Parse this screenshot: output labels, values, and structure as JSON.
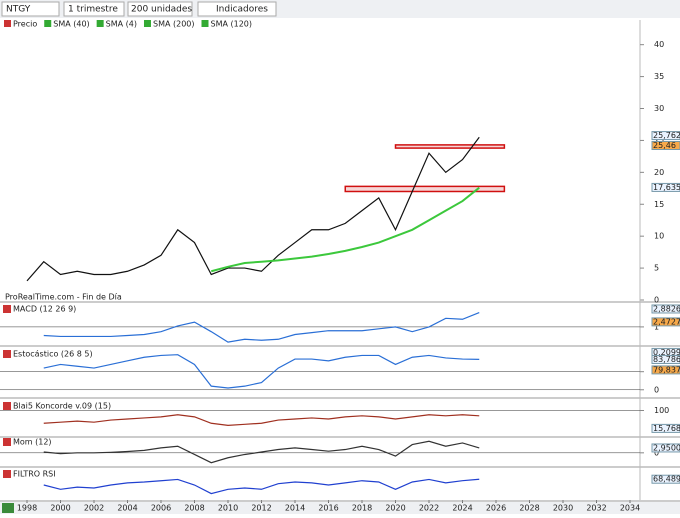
{
  "toolbar": {
    "symbol": "NTGY",
    "period": "1 trimestre",
    "units": "200 unidades",
    "indicators": "Indicadores"
  },
  "legend": [
    "Precio",
    "SMA (40)",
    "SMA (4)",
    "SMA (200)",
    "SMA (120)"
  ],
  "source": "ProRealTime.com - Fin de Día",
  "chart_data": [
    {
      "type": "line",
      "x": [
        1998,
        1999,
        2000,
        2001,
        2002,
        2003,
        2004,
        2005,
        2006,
        2007,
        2008,
        2009,
        2010,
        2011,
        2012,
        2013,
        2014,
        2015,
        2016,
        2017,
        2018,
        2019,
        2020,
        2021,
        2022,
        2023,
        2024,
        2025
      ],
      "series": [
        {
          "name": "Precio",
          "color": "#111111",
          "values": [
            3,
            6,
            4,
            4.5,
            4,
            4,
            4.5,
            5.5,
            7,
            11,
            9,
            4,
            5,
            5,
            4.5,
            7,
            9,
            11,
            11,
            12,
            14,
            16,
            11,
            17,
            23,
            20,
            22,
            25.5
          ]
        },
        {
          "name": "SMA (40)",
          "color": "#3cc83c",
          "values": [
            null,
            null,
            null,
            null,
            null,
            null,
            null,
            null,
            null,
            null,
            null,
            4.5,
            5.2,
            5.8,
            6,
            6.2,
            6.5,
            6.8,
            7.2,
            7.7,
            8.3,
            9,
            10,
            11,
            12.5,
            14,
            15.5,
            17.6
          ]
        }
      ],
      "zones": [
        {
          "low": 23.8,
          "high": 24.3,
          "x": [
            2020,
            2026.5
          ]
        },
        {
          "low": 17,
          "high": 17.8,
          "x": [
            2017,
            2026.5
          ]
        }
      ],
      "ylim": [
        0,
        42.3
      ],
      "yticks": [
        0,
        5,
        10,
        15,
        20,
        25,
        30,
        35,
        40
      ],
      "xlim": [
        1998,
        2036
      ],
      "xticks": [
        1998,
        2000,
        2002,
        2004,
        2006,
        2008,
        2010,
        2012,
        2014,
        2016,
        2018,
        2020,
        2022,
        2024,
        2026,
        2028,
        2030,
        2032,
        2034
      ],
      "last_labels": [
        {
          "value": 25.762,
          "label": "25,762"
        },
        {
          "value": 25.46,
          "label": "25,46"
        },
        {
          "value": 17.635,
          "label": "17,635"
        }
      ]
    },
    {
      "type": "line",
      "title": "MACD (12 26 9)",
      "x": [
        1999,
        2000,
        2001,
        2002,
        2003,
        2004,
        2005,
        2006,
        2007,
        2008,
        2009,
        2010,
        2011,
        2012,
        2013,
        2014,
        2015,
        2016,
        2017,
        2018,
        2019,
        2020,
        2021,
        2022,
        2023,
        2024,
        2025
      ],
      "series": [
        {
          "name": "MACD",
          "color": "#2a6fd6",
          "values": [
            0.1,
            0,
            0,
            0,
            0,
            0.1,
            0.2,
            0.5,
            1.1,
            1.5,
            0.5,
            -0.6,
            -0.3,
            -0.4,
            -0.3,
            0.2,
            0.4,
            0.6,
            0.6,
            0.6,
            0.8,
            1,
            0.5,
            1,
            1.9,
            1.8,
            2.5
          ]
        }
      ],
      "ylim": [
        -0.9,
        3.3
      ],
      "yticks": [
        1
      ],
      "last_labels": [
        {
          "value": 2.8826,
          "label": "2,8826"
        },
        {
          "value": 2.4727,
          "label": "2,4727"
        },
        {
          "value": 0.2099,
          "label": "0,2099"
        }
      ]
    },
    {
      "type": "line",
      "title": "Estocástico (26 8 5)",
      "x": [
        1999,
        2000,
        2001,
        2002,
        2003,
        2004,
        2005,
        2006,
        2007,
        2008,
        2009,
        2010,
        2011,
        2012,
        2013,
        2014,
        2015,
        2016,
        2017,
        2018,
        2019,
        2020,
        2021,
        2022,
        2023,
        2024,
        2025
      ],
      "series": [
        {
          "name": "%K",
          "color": "#2a6fd6",
          "values": [
            60,
            70,
            65,
            60,
            70,
            80,
            90,
            95,
            97,
            70,
            10,
            5,
            10,
            20,
            60,
            85,
            85,
            80,
            90,
            95,
            95,
            70,
            90,
            95,
            88,
            85,
            84
          ]
        }
      ],
      "ylim": [
        -20,
        110
      ],
      "yticks": [
        50,
        0
      ],
      "last_labels": [
        {
          "value": 83.786,
          "label": "83,786"
        },
        {
          "value": 79.837,
          "label": "79,837"
        }
      ]
    },
    {
      "type": "line",
      "title": "Blai5 Koncorde v.09 (15)",
      "x": [
        1999,
        2000,
        2001,
        2002,
        2003,
        2004,
        2005,
        2006,
        2007,
        2008,
        2009,
        2010,
        2011,
        2012,
        2013,
        2014,
        2015,
        2016,
        2017,
        2018,
        2019,
        2020,
        2021,
        2022,
        2023,
        2024,
        2025
      ],
      "series": [
        {
          "name": "Koncorde",
          "color": "#a03020",
          "values": [
            40,
            45,
            50,
            45,
            55,
            60,
            65,
            70,
            80,
            70,
            40,
            30,
            35,
            40,
            55,
            60,
            65,
            60,
            70,
            75,
            70,
            60,
            70,
            80,
            75,
            80,
            75
          ]
        }
      ],
      "ylim": [
        -20,
        140
      ],
      "yticks": [
        100
      ],
      "last_labels": [
        {
          "value": 15.768,
          "label": "15,768"
        }
      ]
    },
    {
      "type": "line",
      "title": "Mom (12)",
      "x": [
        1999,
        2000,
        2001,
        2002,
        2003,
        2004,
        2005,
        2006,
        2007,
        2008,
        2009,
        2010,
        2011,
        2012,
        2013,
        2014,
        2015,
        2016,
        2017,
        2018,
        2019,
        2020,
        2021,
        2022,
        2023,
        2024,
        2025
      ],
      "series": [
        {
          "name": "Mom",
          "color": "#333333",
          "values": [
            0.5,
            -0.5,
            0,
            0,
            0.3,
            0.8,
            1.5,
            3,
            4,
            -1,
            -6,
            -3,
            -1,
            0.5,
            2,
            3,
            2,
            1,
            2,
            4,
            2,
            -2,
            5,
            7,
            4,
            6,
            2.95
          ]
        }
      ],
      "ylim": [
        -8,
        9
      ],
      "yticks": [
        0
      ],
      "last_labels": [
        {
          "value": 2.95,
          "label": "2,9500"
        }
      ]
    },
    {
      "type": "line",
      "title": "FILTRO RSI",
      "x": [
        1999,
        2000,
        2001,
        2002,
        2003,
        2004,
        2005,
        2006,
        2007,
        2008,
        2009,
        2010,
        2011,
        2012,
        2013,
        2014,
        2015,
        2016,
        2017,
        2018,
        2019,
        2020,
        2021,
        2022,
        2023,
        2024,
        2025
      ],
      "series": [
        {
          "name": "RSI",
          "color": "#2040d0",
          "values": [
            55,
            45,
            50,
            48,
            55,
            60,
            62,
            65,
            68,
            55,
            35,
            45,
            48,
            45,
            58,
            62,
            60,
            55,
            60,
            65,
            62,
            45,
            62,
            68,
            60,
            65,
            68.489
          ]
        }
      ],
      "ylim": [
        20,
        90
      ],
      "yticks": [],
      "last_labels": [
        {
          "value": 68.489,
          "label": "68,489"
        }
      ]
    }
  ]
}
